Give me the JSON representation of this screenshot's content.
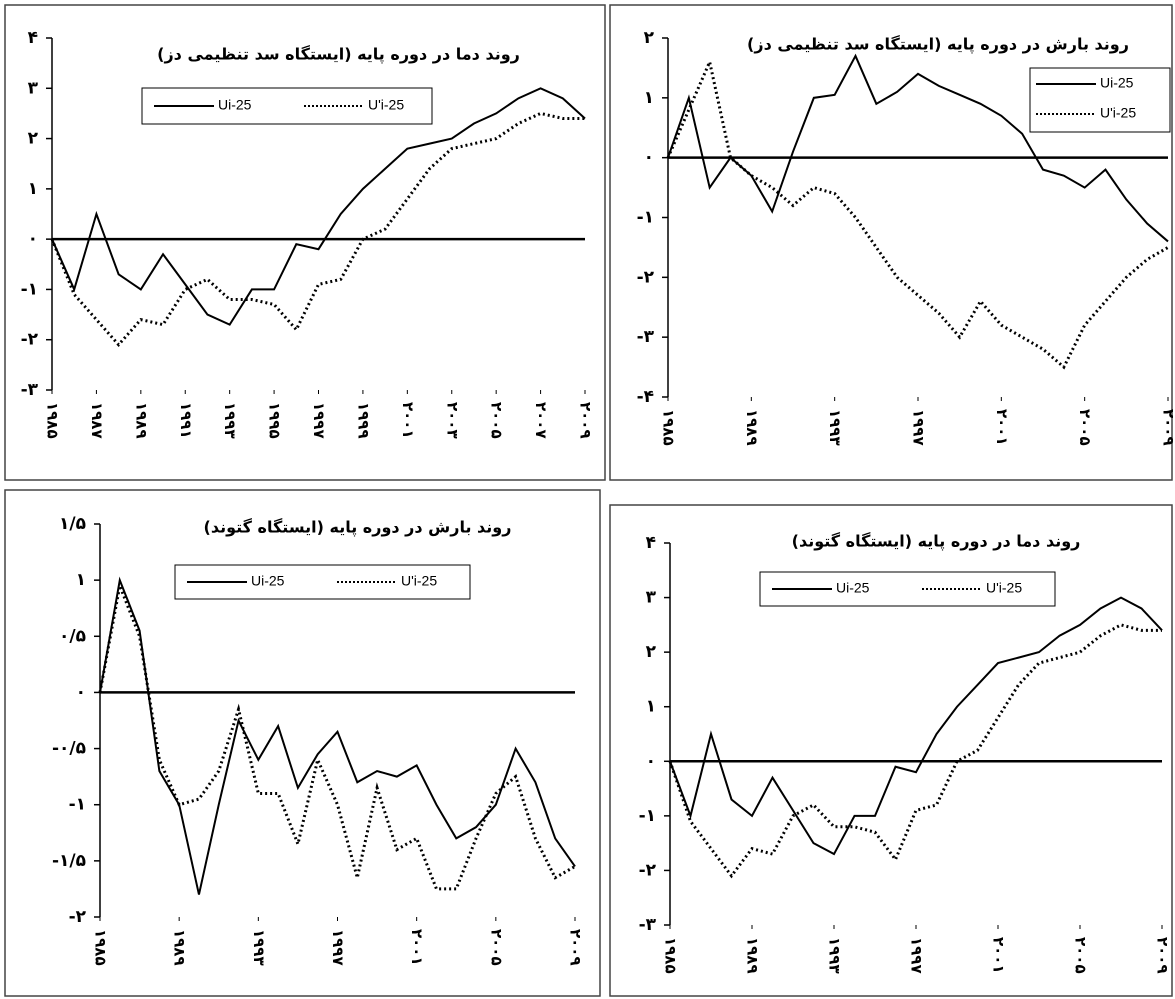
{
  "chart_data": [
    {
      "type": "line",
      "title": "روند دما در دوره پایه (ایستگاه سد تنظیمی دز)",
      "x": [
        1985,
        1986,
        1987,
        1988,
        1989,
        1990,
        1991,
        1992,
        1993,
        1994,
        1995,
        1996,
        1997,
        1998,
        1999,
        2000,
        2001,
        2002,
        2003,
        2004,
        2005,
        2006,
        2007,
        2008,
        2009
      ],
      "series": [
        {
          "name": "Ui-25",
          "color": "#000000",
          "dash": "solid",
          "values": [
            0,
            -1.0,
            0.5,
            -0.7,
            -1.0,
            -0.3,
            -0.9,
            -1.5,
            -1.7,
            -1.0,
            -1.0,
            -0.1,
            -0.2,
            0.5,
            1.0,
            1.4,
            1.8,
            1.9,
            2.0,
            2.3,
            2.5,
            2.8,
            3.0,
            2.8,
            2.4
          ]
        },
        {
          "name": "U'i-25",
          "color": "#000000",
          "dash": "dotted",
          "values": [
            0,
            -1.1,
            -1.6,
            -2.1,
            -1.6,
            -1.7,
            -1.0,
            -0.8,
            -1.2,
            -1.2,
            -1.3,
            -1.8,
            -0.9,
            -0.8,
            0,
            0.2,
            0.8,
            1.4,
            1.8,
            1.9,
            2.0,
            2.3,
            2.5,
            2.4,
            2.4
          ]
        }
      ],
      "xlim": [
        1985,
        2009
      ],
      "xticks": [
        {
          "value": 1985,
          "label": "۱۹۸۵"
        },
        {
          "value": 1987,
          "label": "۱۹۸۷"
        },
        {
          "value": 1989,
          "label": "۱۹۸۹"
        },
        {
          "value": 1991,
          "label": "۱۹۹۱"
        },
        {
          "value": 1993,
          "label": "۱۹۹۳"
        },
        {
          "value": 1995,
          "label": "۱۹۹۵"
        },
        {
          "value": 1997,
          "label": "۱۹۹۷"
        },
        {
          "value": 1999,
          "label": "۱۹۹۹"
        },
        {
          "value": 2001,
          "label": "۲۰۰۱"
        },
        {
          "value": 2003,
          "label": "۲۰۰۳"
        },
        {
          "value": 2005,
          "label": "۲۰۰۵"
        },
        {
          "value": 2007,
          "label": "۲۰۰۷"
        },
        {
          "value": 2009,
          "label": "۲۰۰۹"
        }
      ],
      "ylim": [
        -3,
        4
      ],
      "yticks": [
        {
          "value": 4,
          "label": "۴"
        },
        {
          "value": 3,
          "label": "۳"
        },
        {
          "value": 2,
          "label": "۲"
        },
        {
          "value": 1,
          "label": "۱"
        },
        {
          "value": 0,
          "label": "۰"
        },
        {
          "value": -1,
          "label": "-۱"
        },
        {
          "value": -2,
          "label": "-۲"
        },
        {
          "value": -3,
          "label": "-۳"
        }
      ],
      "legend": "upper center"
    },
    {
      "type": "line",
      "title": "روند بارش در دوره پایه (ایستگاه سد تنظیمی دز)",
      "x": [
        1985,
        1986,
        1987,
        1988,
        1989,
        1990,
        1991,
        1992,
        1993,
        1994,
        1995,
        1996,
        1997,
        1998,
        1999,
        2000,
        2001,
        2002,
        2003,
        2004,
        2005,
        2006,
        2007,
        2008,
        2009
      ],
      "series": [
        {
          "name": "Ui-25",
          "color": "#000000",
          "dash": "solid",
          "values": [
            0,
            1.0,
            -0.5,
            0,
            -0.3,
            -0.9,
            0.1,
            1.0,
            1.05,
            1.7,
            0.9,
            1.1,
            1.4,
            1.2,
            1.05,
            0.9,
            0.7,
            0.4,
            -0.2,
            -0.3,
            -0.5,
            -0.2,
            -0.7,
            -1.1,
            -1.4
          ]
        },
        {
          "name": "U'i-25",
          "color": "#000000",
          "dash": "dotted",
          "values": [
            0,
            0.8,
            1.6,
            0,
            -0.3,
            -0.5,
            -0.8,
            -0.5,
            -0.6,
            -1.0,
            -1.5,
            -2.0,
            -2.3,
            -2.6,
            -3.0,
            -2.4,
            -2.8,
            -3.0,
            -3.2,
            -3.5,
            -2.8,
            -2.4,
            -2.0,
            -1.7,
            -1.5
          ]
        }
      ],
      "xlim": [
        1985,
        2009
      ],
      "xticks": [
        {
          "value": 1985,
          "label": "۱۹۸۵"
        },
        {
          "value": 1989,
          "label": "۱۹۸۹"
        },
        {
          "value": 1993,
          "label": "۱۹۹۳"
        },
        {
          "value": 1997,
          "label": "۱۹۹۷"
        },
        {
          "value": 2001,
          "label": "۲۰۰۱"
        },
        {
          "value": 2005,
          "label": "۲۰۰۵"
        },
        {
          "value": 2009,
          "label": "۲۰۰۹"
        }
      ],
      "ylim": [
        -4,
        2
      ],
      "yticks": [
        {
          "value": 2,
          "label": "۲"
        },
        {
          "value": 1,
          "label": "۱"
        },
        {
          "value": 0,
          "label": "۰"
        },
        {
          "value": -1,
          "label": "-۱"
        },
        {
          "value": -2,
          "label": "-۲"
        },
        {
          "value": -3,
          "label": "-۳"
        },
        {
          "value": -4,
          "label": "-۴"
        }
      ],
      "legend": "upper right"
    },
    {
      "type": "line",
      "title": "روند بارش در دوره پایه (ایستگاه گتوند)",
      "x": [
        1985,
        1986,
        1987,
        1988,
        1989,
        1990,
        1991,
        1992,
        1993,
        1994,
        1995,
        1996,
        1997,
        1998,
        1999,
        2000,
        2001,
        2002,
        2003,
        2004,
        2005,
        2006,
        2007,
        2008,
        2009
      ],
      "series": [
        {
          "name": "Ui-25",
          "color": "#000000",
          "dash": "solid",
          "values": [
            0,
            1.0,
            0.55,
            -0.7,
            -1.0,
            -1.8,
            -1.0,
            -0.25,
            -0.6,
            -0.3,
            -0.85,
            -0.55,
            -0.35,
            -0.8,
            -0.7,
            -0.75,
            -0.65,
            -1.0,
            -1.3,
            -1.2,
            -1.0,
            -0.5,
            -0.8,
            -1.3,
            -1.55
          ]
        },
        {
          "name": "U'i-25",
          "color": "#000000",
          "dash": "dotted",
          "values": [
            0,
            0.95,
            0.5,
            -0.6,
            -1.0,
            -0.95,
            -0.7,
            -0.15,
            -0.9,
            -0.9,
            -1.35,
            -0.6,
            -1.0,
            -1.65,
            -0.85,
            -1.4,
            -1.3,
            -1.75,
            -1.75,
            -1.3,
            -0.9,
            -0.75,
            -1.3,
            -1.65,
            -1.55
          ]
        }
      ],
      "xlim": [
        1985,
        2009
      ],
      "xticks": [
        {
          "value": 1985,
          "label": "۱۹۸۵"
        },
        {
          "value": 1989,
          "label": "۱۹۸۹"
        },
        {
          "value": 1993,
          "label": "۱۹۹۳"
        },
        {
          "value": 1997,
          "label": "۱۹۹۷"
        },
        {
          "value": 2001,
          "label": "۲۰۰۱"
        },
        {
          "value": 2005,
          "label": "۲۰۰۵"
        },
        {
          "value": 2009,
          "label": "۲۰۰۹"
        }
      ],
      "ylim": [
        -2,
        1.5
      ],
      "yticks": [
        {
          "value": 1.5,
          "label": "۱/۵"
        },
        {
          "value": 1,
          "label": "۱"
        },
        {
          "value": 0.5,
          "label": "۰/۵"
        },
        {
          "value": 0,
          "label": "۰"
        },
        {
          "value": -0.5,
          "label": "-۰/۵"
        },
        {
          "value": -1,
          "label": "-۱"
        },
        {
          "value": -1.5,
          "label": "-۱/۵"
        },
        {
          "value": -2,
          "label": "-۲"
        }
      ],
      "legend": "upper center"
    },
    {
      "type": "line",
      "title": "روند دما در دوره پایه (ایستگاه گتوند)",
      "x": [
        1985,
        1986,
        1987,
        1988,
        1989,
        1990,
        1991,
        1992,
        1993,
        1994,
        1995,
        1996,
        1997,
        1998,
        1999,
        2000,
        2001,
        2002,
        2003,
        2004,
        2005,
        2006,
        2007,
        2008,
        2009
      ],
      "series": [
        {
          "name": "Ui-25",
          "color": "#000000",
          "dash": "solid",
          "values": [
            0,
            -1.0,
            0.5,
            -0.7,
            -1.0,
            -0.3,
            -0.9,
            -1.5,
            -1.7,
            -1.0,
            -1.0,
            -0.1,
            -0.2,
            0.5,
            1.0,
            1.4,
            1.8,
            1.9,
            2.0,
            2.3,
            2.5,
            2.8,
            3.0,
            2.8,
            2.4
          ]
        },
        {
          "name": "U'i-25",
          "color": "#000000",
          "dash": "dotted",
          "values": [
            0,
            -1.1,
            -1.6,
            -2.1,
            -1.6,
            -1.7,
            -1.0,
            -0.8,
            -1.2,
            -1.2,
            -1.3,
            -1.8,
            -0.9,
            -0.8,
            0,
            0.2,
            0.8,
            1.4,
            1.8,
            1.9,
            2.0,
            2.3,
            2.5,
            2.4,
            2.4
          ]
        }
      ],
      "xlim": [
        1985,
        2009
      ],
      "xticks": [
        {
          "value": 1985,
          "label": "۱۹۸۵"
        },
        {
          "value": 1989,
          "label": "۱۹۸۹"
        },
        {
          "value": 1993,
          "label": "۱۹۹۳"
        },
        {
          "value": 1997,
          "label": "۱۹۹۷"
        },
        {
          "value": 2001,
          "label": "۲۰۰۱"
        },
        {
          "value": 2005,
          "label": "۲۰۰۵"
        },
        {
          "value": 2009,
          "label": "۲۰۰۹"
        }
      ],
      "ylim": [
        -3,
        4
      ],
      "yticks": [
        {
          "value": 4,
          "label": "۴"
        },
        {
          "value": 3,
          "label": "۳"
        },
        {
          "value": 2,
          "label": "۲"
        },
        {
          "value": 1,
          "label": "۱"
        },
        {
          "value": 0,
          "label": "۰"
        },
        {
          "value": -1,
          "label": "-۱"
        },
        {
          "value": -2,
          "label": "-۲"
        },
        {
          "value": -3,
          "label": "-۳"
        }
      ],
      "legend": "upper center"
    }
  ]
}
